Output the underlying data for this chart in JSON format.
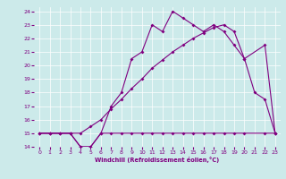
{
  "xlabel": "Windchill (Refroidissement éolien,°C)",
  "bg_color": "#cceaea",
  "line_color": "#800080",
  "grid_color": "#ffffff",
  "xlim": [
    -0.5,
    23.5
  ],
  "ylim": [
    14,
    24.3
  ],
  "yticks": [
    14,
    15,
    16,
    17,
    18,
    19,
    20,
    21,
    22,
    23,
    24
  ],
  "xticks": [
    0,
    1,
    2,
    3,
    4,
    5,
    6,
    7,
    8,
    9,
    10,
    11,
    12,
    13,
    14,
    15,
    16,
    17,
    18,
    19,
    20,
    21,
    22,
    23
  ],
  "s1x": [
    0,
    1,
    2,
    3,
    4,
    5,
    6,
    7,
    8,
    9,
    10,
    11,
    12,
    13,
    14,
    15,
    16,
    17,
    18,
    19,
    20,
    22,
    23
  ],
  "s1y": [
    15,
    15,
    15,
    15,
    14,
    14,
    15,
    15,
    15,
    15,
    15,
    15,
    15,
    15,
    15,
    15,
    15,
    15,
    15,
    15,
    15,
    15,
    15
  ],
  "s2x": [
    0,
    1,
    2,
    3,
    4,
    5,
    6,
    7,
    8,
    9,
    10,
    11,
    12,
    13,
    14,
    15,
    16,
    17,
    18,
    19,
    20,
    21,
    22,
    23
  ],
  "s2y": [
    15,
    15,
    15,
    15,
    14,
    14,
    15,
    17,
    18,
    20.5,
    21,
    23,
    22.5,
    24,
    23.5,
    23,
    22.5,
    23,
    22.5,
    21.5,
    20.5,
    18,
    17.5,
    15
  ],
  "s3x": [
    0,
    1,
    2,
    3,
    4,
    5,
    6,
    7,
    8,
    9,
    10,
    11,
    12,
    13,
    14,
    15,
    16,
    17,
    18,
    19,
    20,
    22,
    23
  ],
  "s3y": [
    15,
    15,
    15,
    15,
    15,
    15.5,
    16.0,
    16.8,
    17.5,
    18.3,
    19.0,
    19.8,
    20.4,
    21.0,
    21.5,
    22.0,
    22.4,
    22.8,
    23.0,
    22.5,
    20.5,
    21.5,
    15
  ]
}
